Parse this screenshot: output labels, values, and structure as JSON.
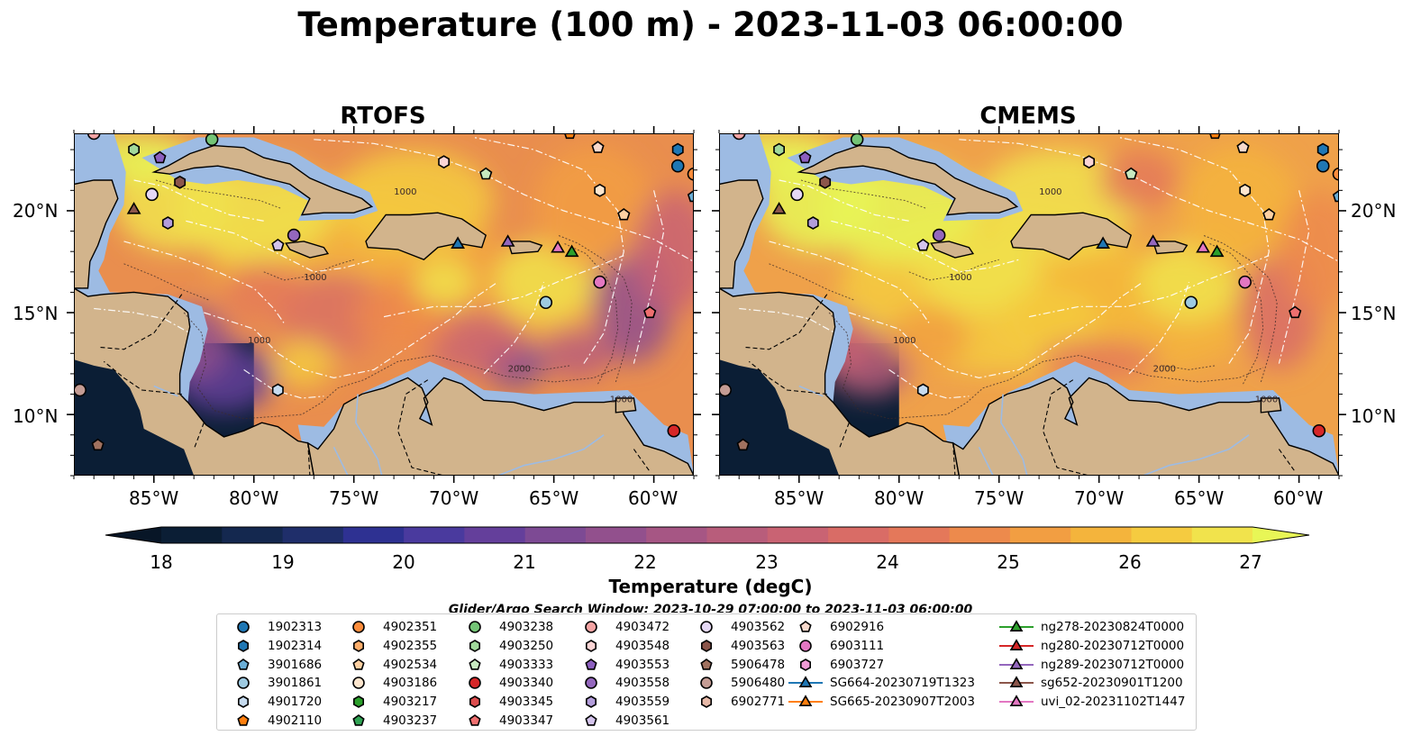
{
  "title": "Temperature (100 m) - 2023-11-03 06:00:00",
  "panels": [
    {
      "title": "RTOFS"
    },
    {
      "title": "CMEMS"
    }
  ],
  "axes": {
    "longitude_ticks": [
      "85°W",
      "80°W",
      "75°W",
      "70°W",
      "65°W",
      "60°W"
    ],
    "latitude_ticks": [
      "20°N",
      "15°N",
      "10°N"
    ],
    "lon_range": [
      -89,
      -58
    ],
    "lat_range": [
      7,
      23.8
    ],
    "contour_labels": [
      "1000",
      "1000",
      "2000",
      "1000",
      "1000"
    ]
  },
  "colorbar": {
    "label": "Temperature (degC)",
    "ticks": [
      "18",
      "19",
      "20",
      "21",
      "22",
      "23",
      "24",
      "25",
      "26",
      "27"
    ],
    "range": [
      18,
      27
    ],
    "extend": "both",
    "colors": [
      "#0b1e35",
      "#14284f",
      "#1f2e6a",
      "#2e3192",
      "#4a3a9e",
      "#643f9b",
      "#7d4a94",
      "#92508d",
      "#a65684",
      "#b85d7b",
      "#c96373",
      "#d96c66",
      "#e4785a",
      "#ed8a4c",
      "#f29e42",
      "#f4b43c",
      "#f5cb40",
      "#f1e34c",
      "#e8f656"
    ]
  },
  "search_window": "Glider/Argo Search Window: 2023-10-29 07:00:00 to 2023-11-03 06:00:00",
  "legend": [
    [
      {
        "label": "1902313",
        "marker": "circle",
        "color": "#1f77b4"
      },
      {
        "label": "1902314",
        "marker": "hexagon",
        "color": "#1f77b4"
      },
      {
        "label": "3901686",
        "marker": "pentagon",
        "color": "#6baed6"
      },
      {
        "label": "3901861",
        "marker": "circle",
        "color": "#9ecae1"
      },
      {
        "label": "4901720",
        "marker": "hexagon",
        "color": "#c6dbef"
      },
      {
        "label": "4902110",
        "marker": "pentagon",
        "color": "#ff7f0e"
      }
    ],
    [
      {
        "label": "4902351",
        "marker": "circle",
        "color": "#fd8d3c"
      },
      {
        "label": "4902355",
        "marker": "hexagon",
        "color": "#fdae6b"
      },
      {
        "label": "4902534",
        "marker": "pentagon",
        "color": "#fdd0a2"
      },
      {
        "label": "4903186",
        "marker": "circle",
        "color": "#fee6ce"
      },
      {
        "label": "4903217",
        "marker": "hexagon",
        "color": "#2ca02c"
      },
      {
        "label": "4903237",
        "marker": "pentagon",
        "color": "#31a354"
      }
    ],
    [
      {
        "label": "4903238",
        "marker": "circle",
        "color": "#74c476"
      },
      {
        "label": "4903250",
        "marker": "hexagon",
        "color": "#a1d99b"
      },
      {
        "label": "4903333",
        "marker": "pentagon",
        "color": "#c7e9c0"
      },
      {
        "label": "4903340",
        "marker": "circle",
        "color": "#d62728"
      },
      {
        "label": "4903345",
        "marker": "hexagon",
        "color": "#de4d4e"
      },
      {
        "label": "4903347",
        "marker": "pentagon",
        "color": "#ef6f6f"
      }
    ],
    [
      {
        "label": "4903472",
        "marker": "circle",
        "color": "#f4a3a3"
      },
      {
        "label": "4903548",
        "marker": "hexagon",
        "color": "#fbd5d5"
      },
      {
        "label": "4903553",
        "marker": "pentagon",
        "color": "#8c5fbf"
      },
      {
        "label": "4903558",
        "marker": "circle",
        "color": "#9467bd"
      },
      {
        "label": "4903559",
        "marker": "hexagon",
        "color": "#b39ddb"
      },
      {
        "label": "4903561",
        "marker": "pentagon",
        "color": "#d4c4ec"
      }
    ],
    [
      {
        "label": "4903562",
        "marker": "circle",
        "color": "#e5d8f5"
      },
      {
        "label": "4903563",
        "marker": "hexagon",
        "color": "#8c564b"
      },
      {
        "label": "5906478",
        "marker": "pentagon",
        "color": "#a0715f"
      },
      {
        "label": "5906480",
        "marker": "circle",
        "color": "#c49c94"
      },
      {
        "label": "6902771",
        "marker": "hexagon",
        "color": "#e7b9a8"
      }
    ],
    [
      {
        "label": "6902916",
        "marker": "pentagon",
        "color": "#f7d9cc"
      },
      {
        "label": "6903111",
        "marker": "circle",
        "color": "#e377c2"
      },
      {
        "label": "6903727",
        "marker": "hexagon",
        "color": "#f09bd5"
      },
      {
        "label": "SG664-20230719T1323",
        "marker": "triangle-line",
        "color": "#1f77b4"
      },
      {
        "label": "SG665-20230907T2003",
        "marker": "triangle-line",
        "color": "#ff7f0e"
      }
    ],
    [
      {
        "label": "ng278-20230824T0000",
        "marker": "triangle-line",
        "color": "#2ca02c"
      },
      {
        "label": "ng280-20230712T0000",
        "marker": "triangle-line",
        "color": "#d62728"
      },
      {
        "label": "ng289-20230712T0000",
        "marker": "triangle-line",
        "color": "#9467bd"
      },
      {
        "label": "sg652-20230901T1200",
        "marker": "triangle-line",
        "color": "#8c564b"
      },
      {
        "label": "uvi_02-20231102T1447",
        "marker": "triangle-line",
        "color": "#e377c2"
      }
    ]
  ],
  "markers": [
    {
      "lon": -88.0,
      "lat": 23.8,
      "marker": "circle",
      "color": "#f4a3a3"
    },
    {
      "lon": -86.0,
      "lat": 23.0,
      "marker": "hexagon",
      "color": "#a1d99b"
    },
    {
      "lon": -82.1,
      "lat": 23.5,
      "marker": "circle",
      "color": "#74c476"
    },
    {
      "lon": -84.7,
      "lat": 22.6,
      "marker": "pentagon",
      "color": "#8c5fbf"
    },
    {
      "lon": -83.7,
      "lat": 21.4,
      "marker": "hexagon",
      "color": "#8c564b"
    },
    {
      "lon": -85.1,
      "lat": 20.8,
      "marker": "circle",
      "color": "#e5d8f5"
    },
    {
      "lon": -86.0,
      "lat": 20.1,
      "marker": "triangle",
      "color": "#8c564b"
    },
    {
      "lon": -84.3,
      "lat": 19.4,
      "marker": "hexagon",
      "color": "#b39ddb"
    },
    {
      "lon": -78.8,
      "lat": 18.3,
      "marker": "pentagon",
      "color": "#d4c4ec"
    },
    {
      "lon": -78.0,
      "lat": 18.8,
      "marker": "circle",
      "color": "#9467bd"
    },
    {
      "lon": -70.5,
      "lat": 22.4,
      "marker": "hexagon",
      "color": "#fbd5d5"
    },
    {
      "lon": -68.4,
      "lat": 21.8,
      "marker": "pentagon",
      "color": "#c7e9c0"
    },
    {
      "lon": -69.8,
      "lat": 18.4,
      "marker": "triangle",
      "color": "#1f77b4"
    },
    {
      "lon": -67.3,
      "lat": 18.5,
      "marker": "triangle",
      "color": "#9467bd"
    },
    {
      "lon": -64.8,
      "lat": 18.2,
      "marker": "triangle",
      "color": "#e377c2"
    },
    {
      "lon": -64.1,
      "lat": 18.0,
      "marker": "triangle",
      "color": "#2ca02c"
    },
    {
      "lon": -64.2,
      "lat": 23.8,
      "marker": "pentagon",
      "color": "#ff7f0e"
    },
    {
      "lon": -62.8,
      "lat": 23.1,
      "marker": "pentagon",
      "color": "#f7d9cc"
    },
    {
      "lon": -62.7,
      "lat": 21.0,
      "marker": "hexagon",
      "color": "#fee6ce"
    },
    {
      "lon": -61.5,
      "lat": 19.8,
      "marker": "pentagon",
      "color": "#fdd0a2"
    },
    {
      "lon": -58.8,
      "lat": 23.0,
      "marker": "hexagon",
      "color": "#1f77b4"
    },
    {
      "lon": -58.8,
      "lat": 22.2,
      "marker": "circle",
      "color": "#1f77b4"
    },
    {
      "lon": -58.0,
      "lat": 21.8,
      "marker": "circle",
      "color": "#fd8d3c"
    },
    {
      "lon": -58.0,
      "lat": 20.7,
      "marker": "pentagon",
      "color": "#6baed6"
    },
    {
      "lon": -62.7,
      "lat": 16.5,
      "marker": "circle",
      "color": "#e377c2"
    },
    {
      "lon": -65.4,
      "lat": 15.5,
      "marker": "circle",
      "color": "#9ecae1"
    },
    {
      "lon": -60.2,
      "lat": 15.0,
      "marker": "pentagon",
      "color": "#ef6f6f"
    },
    {
      "lon": -78.8,
      "lat": 11.2,
      "marker": "hexagon",
      "color": "#c6dbef"
    },
    {
      "lon": -88.7,
      "lat": 11.2,
      "marker": "circle",
      "color": "#c49c94"
    },
    {
      "lon": -87.8,
      "lat": 8.5,
      "marker": "pentagon",
      "color": "#a0715f"
    },
    {
      "lon": -59.0,
      "lat": 9.2,
      "marker": "circle",
      "color": "#d62728"
    }
  ]
}
